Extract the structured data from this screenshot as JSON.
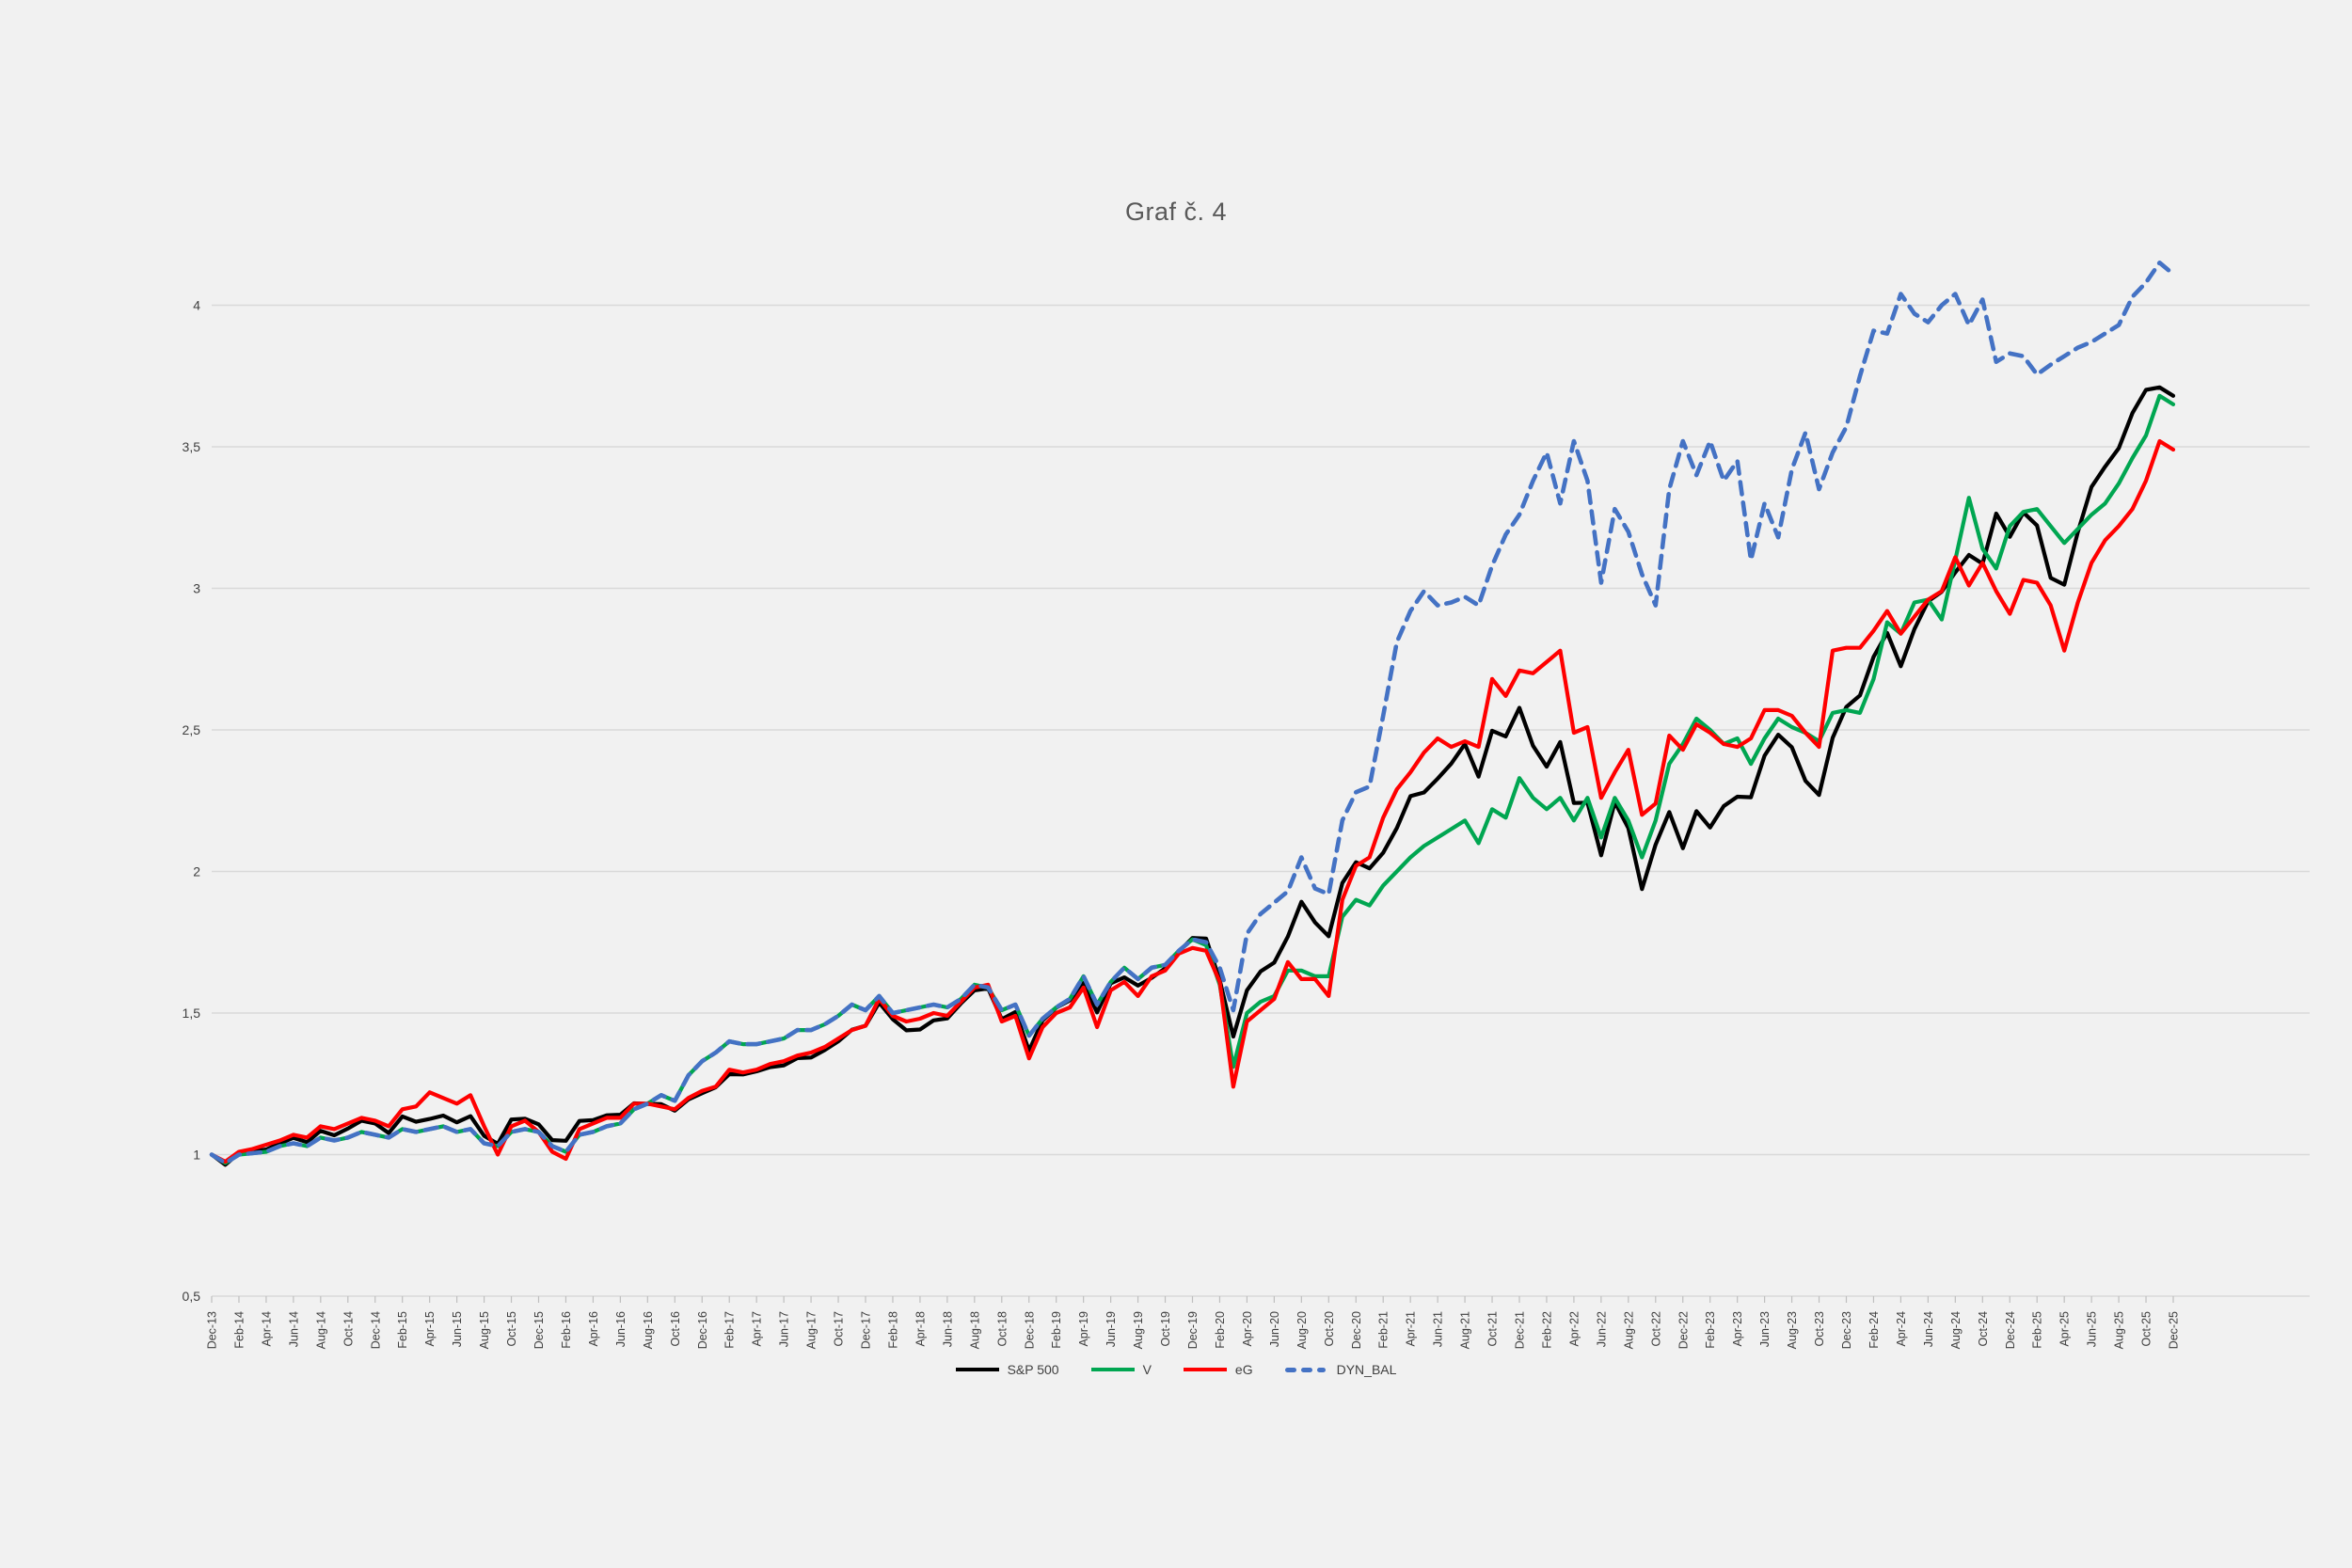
{
  "page": {
    "background": "#f1f1f1"
  },
  "chart": {
    "title": "Graf č. 4",
    "grid_color": "#d9d9d9",
    "tick_color": "#bfbfbf",
    "axis_text_color": "#404040",
    "title_color": "#595959"
  },
  "chart_data": {
    "type": "line",
    "title": "Graf č. 4",
    "xlabel": "",
    "ylabel": "",
    "ylim": [
      0.5,
      4.25
    ],
    "y_ticks": [
      0.5,
      1,
      1.5,
      2,
      2.5,
      3,
      3.5,
      4
    ],
    "y_tick_labels": [
      "0,5",
      "1",
      "1,5",
      "2",
      "2,5",
      "3",
      "3,5",
      "4"
    ],
    "grid": "horizontal",
    "legend_position": "bottom",
    "x_note": "monthly points from Dec-13 to Dec-25; axis labeled every 2 months",
    "x_tick_labels": [
      "Dec-13",
      "Feb-14",
      "Apr-14",
      "Jun-14",
      "Aug-14",
      "Oct-14",
      "Dec-14",
      "Feb-15",
      "Apr-15",
      "Jun-15",
      "Aug-15",
      "Oct-15",
      "Dec-15",
      "Feb-16",
      "Apr-16",
      "Jun-16",
      "Aug-16",
      "Oct-16",
      "Dec-16",
      "Feb-17",
      "Apr-17",
      "Jun-17",
      "Aug-17",
      "Oct-17",
      "Dec-17",
      "Feb-18",
      "Apr-18",
      "Jun-18",
      "Aug-18",
      "Oct-18",
      "Dec-18",
      "Feb-19",
      "Apr-19",
      "Jun-19",
      "Aug-19",
      "Oct-19",
      "Dec-19",
      "Feb-20",
      "Apr-20",
      "Jun-20",
      "Aug-20",
      "Oct-20",
      "Dec-20",
      "Feb-21",
      "Apr-21",
      "Jun-21",
      "Aug-21",
      "Oct-21",
      "Dec-21",
      "Feb-22",
      "Apr-22",
      "Jun-22",
      "Aug-22",
      "Oct-22",
      "Dec-22",
      "Feb-23",
      "Apr-23",
      "Jun-23",
      "Aug-23",
      "Oct-23",
      "Dec-23",
      "Feb-24",
      "Apr-24",
      "Jun-24",
      "Aug-24",
      "Oct-24",
      "Dec-24",
      "Feb-25",
      "Apr-25",
      "Jun-25",
      "Aug-25",
      "Oct-25",
      "Dec-25"
    ],
    "series": [
      {
        "name": "S&P 500",
        "color": "#000000",
        "dashed": false,
        "values": [
          1.0,
          0.964,
          1.005,
          1.012,
          1.018,
          1.04,
          1.059,
          1.044,
          1.084,
          1.068,
          1.092,
          1.12,
          1.11,
          1.076,
          1.135,
          1.116,
          1.126,
          1.138,
          1.114,
          1.136,
          1.066,
          1.038,
          1.124,
          1.127,
          1.107,
          1.051,
          1.049,
          1.119,
          1.122,
          1.139,
          1.141,
          1.181,
          1.179,
          1.178,
          1.155,
          1.195,
          1.217,
          1.238,
          1.284,
          1.283,
          1.294,
          1.309,
          1.315,
          1.341,
          1.343,
          1.369,
          1.4,
          1.441,
          1.455,
          1.537,
          1.478,
          1.439,
          1.442,
          1.474,
          1.481,
          1.534,
          1.58,
          1.587,
          1.478,
          1.504,
          1.367,
          1.474,
          1.519,
          1.545,
          1.606,
          1.502,
          1.605,
          1.626,
          1.597,
          1.624,
          1.658,
          1.717,
          1.765,
          1.763,
          1.616,
          1.417,
          1.58,
          1.647,
          1.678,
          1.77,
          1.893,
          1.82,
          1.771,
          1.959,
          2.033,
          2.011,
          2.066,
          2.153,
          2.266,
          2.279,
          2.328,
          2.381,
          2.45,
          2.335,
          2.497,
          2.477,
          2.578,
          2.444,
          2.37,
          2.457,
          2.242,
          2.243,
          2.057,
          2.245,
          2.153,
          1.938,
          2.095,
          2.21,
          2.082,
          2.213,
          2.155,
          2.231,
          2.264,
          2.262,
          2.409,
          2.483,
          2.439,
          2.32,
          2.27,
          2.472,
          2.581,
          2.622,
          2.758,
          2.843,
          2.725,
          2.856,
          2.954,
          2.988,
          3.056,
          3.118,
          3.087,
          3.264,
          3.182,
          3.268,
          3.222,
          3.037,
          3.013,
          3.199,
          3.358,
          3.43,
          3.495,
          3.619,
          3.701,
          3.71,
          3.68
        ]
      },
      {
        "name": "V",
        "color": "#00a651",
        "dashed": false,
        "values": [
          1.0,
          0.97,
          1.0,
          1.005,
          1.01,
          1.03,
          1.04,
          1.03,
          1.06,
          1.05,
          1.06,
          1.08,
          1.07,
          1.06,
          1.09,
          1.08,
          1.09,
          1.1,
          1.08,
          1.09,
          1.04,
          1.03,
          1.08,
          1.09,
          1.08,
          1.03,
          1.01,
          1.07,
          1.08,
          1.1,
          1.11,
          1.16,
          1.18,
          1.21,
          1.19,
          1.28,
          1.33,
          1.36,
          1.4,
          1.39,
          1.39,
          1.4,
          1.41,
          1.44,
          1.44,
          1.46,
          1.49,
          1.53,
          1.51,
          1.56,
          1.5,
          1.51,
          1.52,
          1.53,
          1.52,
          1.55,
          1.6,
          1.59,
          1.51,
          1.53,
          1.42,
          1.48,
          1.52,
          1.55,
          1.63,
          1.53,
          1.61,
          1.66,
          1.62,
          1.66,
          1.67,
          1.72,
          1.76,
          1.74,
          1.6,
          1.31,
          1.5,
          1.54,
          1.56,
          1.65,
          1.65,
          1.63,
          1.63,
          1.84,
          1.9,
          1.88,
          1.95,
          2.0,
          2.05,
          2.09,
          2.12,
          2.15,
          2.18,
          2.1,
          2.22,
          2.19,
          2.33,
          2.26,
          2.22,
          2.26,
          2.18,
          2.26,
          2.12,
          2.26,
          2.18,
          2.05,
          2.18,
          2.38,
          2.45,
          2.54,
          2.5,
          2.45,
          2.47,
          2.38,
          2.47,
          2.54,
          2.51,
          2.49,
          2.46,
          2.56,
          2.57,
          2.56,
          2.68,
          2.88,
          2.84,
          2.95,
          2.96,
          2.89,
          3.1,
          3.32,
          3.14,
          3.07,
          3.22,
          3.27,
          3.28,
          3.22,
          3.16,
          3.21,
          3.26,
          3.3,
          3.37,
          3.46,
          3.54,
          3.68,
          3.65
        ]
      },
      {
        "name": "eG",
        "color": "#ff0000",
        "dashed": false,
        "values": [
          1.0,
          0.975,
          1.01,
          1.02,
          1.035,
          1.05,
          1.07,
          1.06,
          1.1,
          1.09,
          1.11,
          1.13,
          1.12,
          1.1,
          1.16,
          1.17,
          1.22,
          1.2,
          1.18,
          1.21,
          1.1,
          1.0,
          1.1,
          1.12,
          1.08,
          1.01,
          0.985,
          1.09,
          1.11,
          1.13,
          1.13,
          1.18,
          1.18,
          1.17,
          1.16,
          1.2,
          1.225,
          1.24,
          1.3,
          1.29,
          1.3,
          1.32,
          1.33,
          1.35,
          1.36,
          1.38,
          1.41,
          1.44,
          1.455,
          1.55,
          1.49,
          1.47,
          1.48,
          1.5,
          1.49,
          1.54,
          1.59,
          1.6,
          1.47,
          1.49,
          1.34,
          1.45,
          1.5,
          1.52,
          1.59,
          1.45,
          1.58,
          1.61,
          1.56,
          1.63,
          1.65,
          1.71,
          1.73,
          1.72,
          1.61,
          1.24,
          1.47,
          1.51,
          1.55,
          1.68,
          1.62,
          1.62,
          1.56,
          1.9,
          2.02,
          2.05,
          2.19,
          2.29,
          2.35,
          2.42,
          2.47,
          2.44,
          2.46,
          2.44,
          2.68,
          2.62,
          2.71,
          2.7,
          2.74,
          2.78,
          2.49,
          2.51,
          2.26,
          2.35,
          2.43,
          2.2,
          2.24,
          2.48,
          2.43,
          2.52,
          2.49,
          2.45,
          2.44,
          2.47,
          2.57,
          2.57,
          2.55,
          2.49,
          2.44,
          2.78,
          2.79,
          2.79,
          2.85,
          2.92,
          2.84,
          2.9,
          2.96,
          2.99,
          3.11,
          3.01,
          3.09,
          2.99,
          2.91,
          3.03,
          3.02,
          2.94,
          2.78,
          2.95,
          3.09,
          3.17,
          3.22,
          3.28,
          3.38,
          3.52,
          3.49
        ]
      },
      {
        "name": "DYN_BAL",
        "color": "#4472c4",
        "dashed": true,
        "values": [
          1.0,
          0.97,
          1.0,
          1.005,
          1.01,
          1.03,
          1.04,
          1.03,
          1.06,
          1.05,
          1.06,
          1.08,
          1.07,
          1.06,
          1.09,
          1.08,
          1.09,
          1.1,
          1.08,
          1.09,
          1.04,
          1.03,
          1.08,
          1.09,
          1.08,
          1.03,
          1.01,
          1.07,
          1.08,
          1.1,
          1.11,
          1.16,
          1.18,
          1.21,
          1.19,
          1.28,
          1.33,
          1.36,
          1.4,
          1.39,
          1.39,
          1.4,
          1.41,
          1.44,
          1.44,
          1.46,
          1.49,
          1.53,
          1.51,
          1.56,
          1.5,
          1.51,
          1.52,
          1.53,
          1.52,
          1.55,
          1.6,
          1.59,
          1.51,
          1.53,
          1.42,
          1.48,
          1.52,
          1.55,
          1.63,
          1.53,
          1.61,
          1.66,
          1.62,
          1.66,
          1.67,
          1.72,
          1.76,
          1.75,
          1.66,
          1.51,
          1.78,
          1.85,
          1.89,
          1.93,
          2.05,
          1.94,
          1.92,
          2.18,
          2.28,
          2.3,
          2.55,
          2.81,
          2.92,
          2.99,
          2.94,
          2.95,
          2.97,
          2.94,
          3.08,
          3.19,
          3.26,
          3.38,
          3.48,
          3.3,
          3.52,
          3.38,
          3.02,
          3.28,
          3.2,
          3.05,
          2.94,
          3.35,
          3.52,
          3.4,
          3.52,
          3.38,
          3.45,
          3.1,
          3.3,
          3.18,
          3.42,
          3.55,
          3.35,
          3.48,
          3.57,
          3.75,
          3.91,
          3.9,
          4.04,
          3.97,
          3.94,
          4.0,
          4.04,
          3.93,
          4.02,
          3.8,
          3.83,
          3.82,
          3.755,
          3.79,
          3.82,
          3.85,
          3.87,
          3.9,
          3.93,
          4.03,
          4.08,
          4.15,
          4.11
        ]
      }
    ]
  }
}
